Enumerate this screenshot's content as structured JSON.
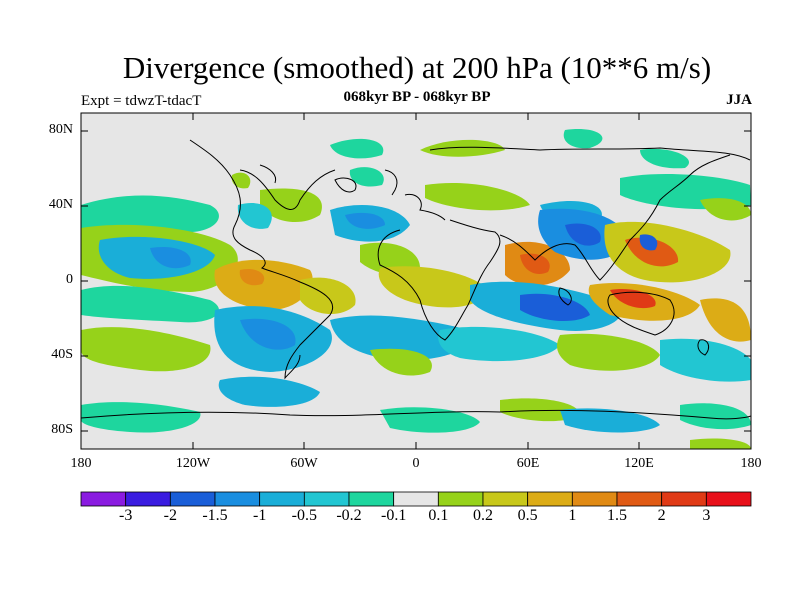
{
  "title": "Divergence (smoothed) at 200 hPa (10**6 m/s)",
  "subtitle_left": "Expt = tdwzT-tdacT",
  "subtitle_center": "068kyr BP - 068kyr BP",
  "subtitle_right": "JJA",
  "lat_ticks": [
    "80N",
    "40N",
    "0",
    "40S",
    "80S"
  ],
  "lon_ticks": [
    "180",
    "120W",
    "60W",
    "0",
    "60E",
    "120E",
    "180"
  ],
  "colorbar": {
    "labels": [
      "-3",
      "-2",
      "-1.5",
      "-1",
      "-0.5",
      "-0.2",
      "-0.1",
      "0.1",
      "0.2",
      "0.5",
      "1",
      "1.5",
      "2",
      "3"
    ],
    "colors": [
      "#8a1be0",
      "#3a1ce0",
      "#1a5ed8",
      "#1a8ee0",
      "#1aaed8",
      "#22c6d2",
      "#1ed69e",
      "#e6e6e6",
      "#96d21a",
      "#c8c81a",
      "#dcac16",
      "#e08a14",
      "#e05a14",
      "#e03a16",
      "#e8101a"
    ]
  }
}
